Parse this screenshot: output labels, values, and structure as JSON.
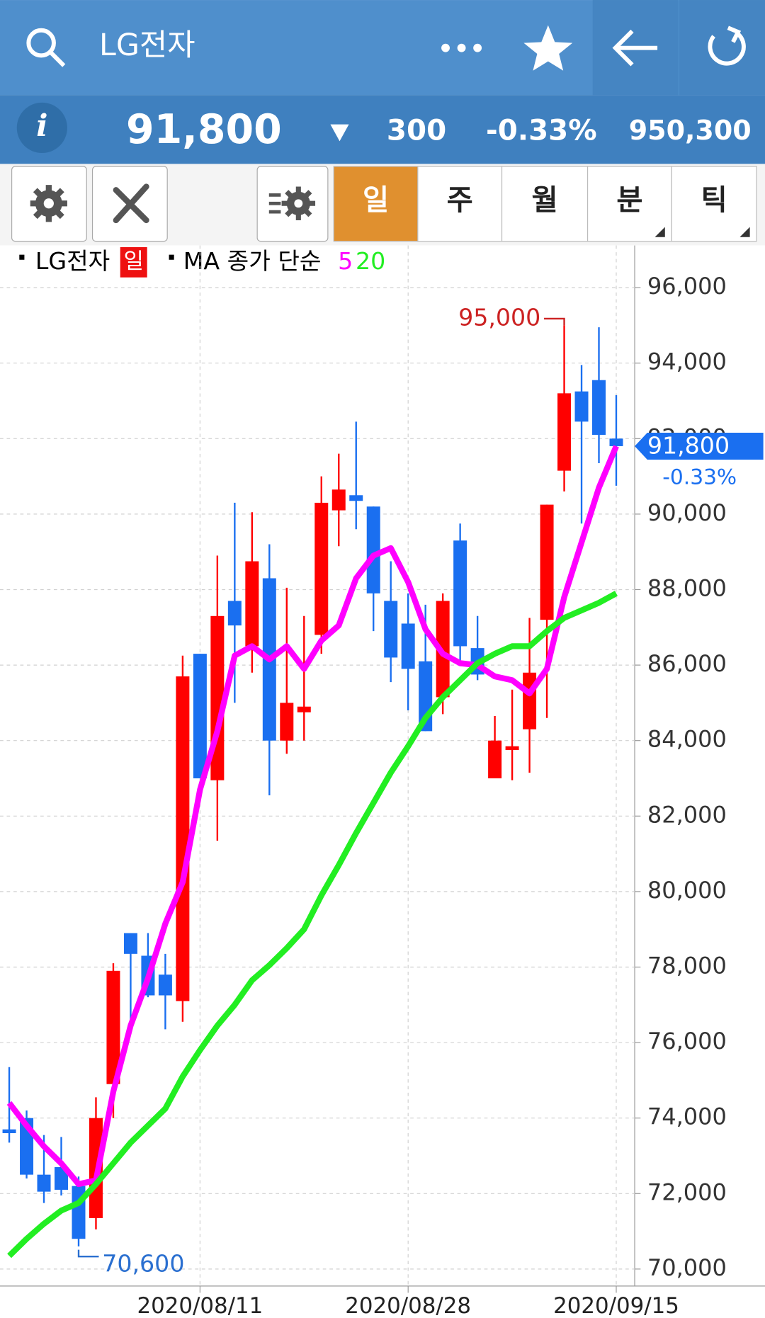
{
  "header": {
    "title": "LG전자",
    "price": "91,800",
    "change": "300",
    "change_pct": "-0.33%",
    "volume": "950,300"
  },
  "tabs": [
    "일",
    "주",
    "월",
    "분",
    "틱"
  ],
  "legend": {
    "symbol": "LG전자",
    "period": "일",
    "ma_label": "MA 종가 단순"
  },
  "chart_data": {
    "type": "candlestick",
    "categories": [
      null,
      null,
      null,
      null,
      null,
      null,
      null,
      null,
      null,
      null,
      null,
      "2020/08/11",
      null,
      null,
      null,
      null,
      null,
      null,
      null,
      null,
      null,
      null,
      null,
      "2020/08/28",
      null,
      null,
      null,
      null,
      null,
      null,
      null,
      null,
      null,
      null,
      null,
      "2020/09/15"
    ],
    "open": [
      73700,
      74000,
      72500,
      72700,
      72200,
      71350,
      74900,
      78900,
      78300,
      77800,
      77100,
      86300,
      82950,
      87700,
      86500,
      88300,
      84000,
      84750,
      86800,
      90100,
      90500,
      90200,
      87700,
      87100,
      86100,
      85150,
      89300,
      86450,
      83000,
      83750,
      84300,
      87200,
      91150,
      93250,
      93550,
      92000
    ],
    "high": [
      75350,
      74200,
      73550,
      73500,
      72450,
      74550,
      78100,
      78900,
      78900,
      78350,
      86250,
      86300,
      88900,
      90300,
      90050,
      89200,
      88050,
      87300,
      91000,
      91600,
      92450,
      90200,
      88750,
      87900,
      87600,
      87900,
      89750,
      87300,
      84650,
      85350,
      87250,
      90250,
      95000,
      93950,
      94950,
      93150
    ],
    "low": [
      73350,
      72400,
      71750,
      71950,
      70600,
      71050,
      74000,
      76550,
      77200,
      76350,
      76550,
      83000,
      81350,
      85000,
      85800,
      82550,
      83650,
      84000,
      86300,
      89150,
      89600,
      86900,
      85550,
      84800,
      84250,
      84700,
      86000,
      85600,
      83000,
      82950,
      83150,
      84600,
      90600,
      89750,
      91350,
      90750
    ],
    "close": [
      73600,
      72500,
      72050,
      72100,
      70800,
      74000,
      77900,
      78350,
      77250,
      77250,
      85700,
      83000,
      87300,
      87050,
      88750,
      84000,
      85000,
      84900,
      90300,
      90650,
      90350,
      87900,
      86200,
      85900,
      84250,
      87700,
      86500,
      85750,
      84000,
      83850,
      85800,
      90250,
      93200,
      92450,
      92100,
      91800
    ],
    "up_color": "#ff0000",
    "down_color": "#1a6ff0",
    "series": [
      {
        "name": "5",
        "color": "#ff00ff",
        "values": [
          74400,
          73800,
          73250,
          72800,
          72250,
          72350,
          74700,
          76450,
          77700,
          79150,
          80250,
          82700,
          84250,
          86250,
          86500,
          86150,
          86500,
          85900,
          86650,
          87050,
          88300,
          88900,
          89100,
          88200,
          86950,
          86300,
          86050,
          86000,
          85700,
          85600,
          85250,
          85900,
          87800,
          89250,
          90700,
          91800
        ]
      },
      {
        "name": "20",
        "color": "#22ee22",
        "values": [
          70350,
          70800,
          71200,
          71550,
          71750,
          72250,
          72800,
          73350,
          73800,
          74250,
          75100,
          75800,
          76450,
          77000,
          77650,
          78050,
          78500,
          79000,
          79900,
          80700,
          81550,
          82350,
          83150,
          83850,
          84600,
          85150,
          85600,
          86050,
          86300,
          86500,
          86500,
          86900,
          87250,
          87450,
          87650,
          87900
        ]
      }
    ],
    "ylim": [
      69550,
      97050
    ],
    "yticks": [
      {
        "value": 70000,
        "label": "70,000"
      },
      {
        "value": 72000,
        "label": "72,000"
      },
      {
        "value": 74000,
        "label": "74,000"
      },
      {
        "value": 76000,
        "label": "76,000"
      },
      {
        "value": 78000,
        "label": "78,000"
      },
      {
        "value": 80000,
        "label": "80,000"
      },
      {
        "value": 82000,
        "label": "82,000"
      },
      {
        "value": 84000,
        "label": "84,000"
      },
      {
        "value": 86000,
        "label": "86,000"
      },
      {
        "value": 88000,
        "label": "88,000"
      },
      {
        "value": 90000,
        "label": "90,000"
      },
      {
        "value": 92000,
        "label": "92,000"
      },
      {
        "value": 94000,
        "label": "94,000"
      },
      {
        "value": 96000,
        "label": "96,000"
      }
    ],
    "grid": true,
    "high_label": "95,000",
    "low_label": "70,600",
    "last_label": "91,800",
    "last_change": "-0.33%"
  }
}
